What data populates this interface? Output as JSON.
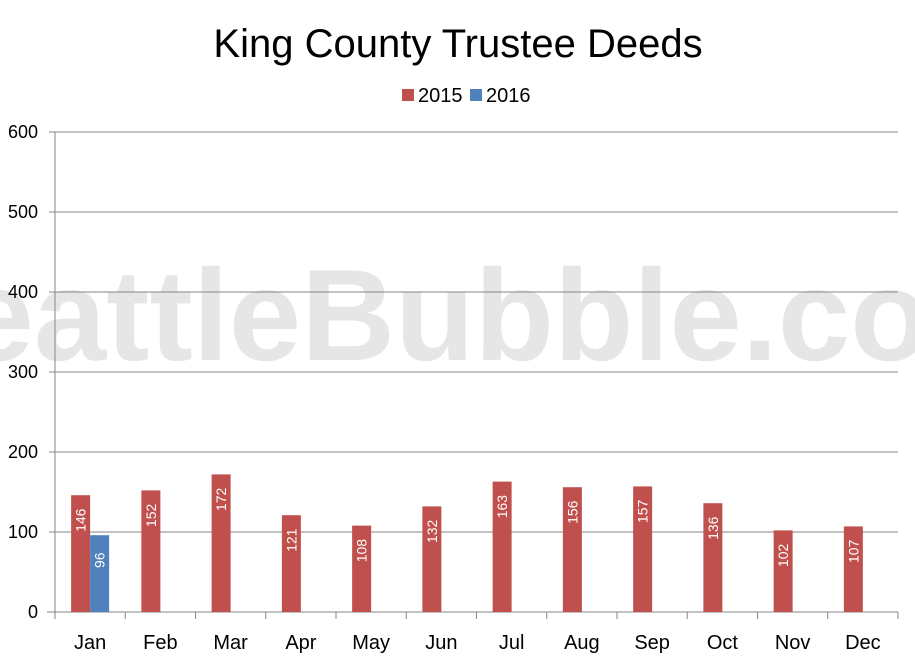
{
  "chart_data": {
    "type": "bar",
    "title": "King County Trustee Deeds",
    "watermark": "SeattleBubble.com",
    "xlabel": "",
    "ylabel": "",
    "ylim": [
      0,
      600
    ],
    "yticks": [
      0,
      100,
      200,
      300,
      400,
      500,
      600
    ],
    "grid": true,
    "legend_position": "top-center",
    "categories": [
      "Jan",
      "Feb",
      "Mar",
      "Apr",
      "May",
      "Jun",
      "Jul",
      "Aug",
      "Sep",
      "Oct",
      "Nov",
      "Dec"
    ],
    "series": [
      {
        "name": "2015",
        "color": "#c0504d",
        "values": [
          146,
          152,
          172,
          121,
          108,
          132,
          163,
          156,
          157,
          136,
          102,
          107
        ]
      },
      {
        "name": "2016",
        "color": "#4f81bd",
        "values": [
          96,
          null,
          null,
          null,
          null,
          null,
          null,
          null,
          null,
          null,
          null,
          null
        ]
      }
    ]
  }
}
